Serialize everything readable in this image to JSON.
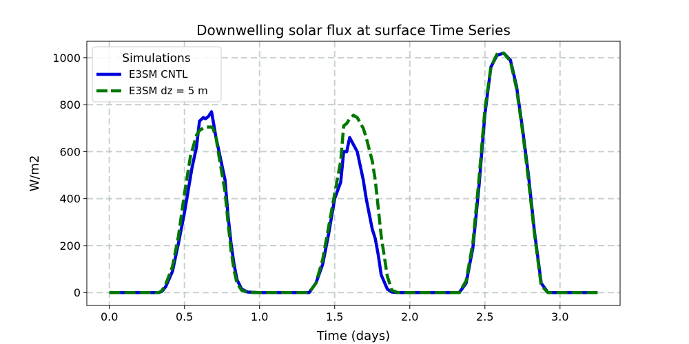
{
  "chart_data": {
    "type": "line",
    "title": "Downwelling solar flux at surface Time Series",
    "xlabel": "Time (days)",
    "ylabel": "W/m2",
    "xlim": [
      -0.15,
      3.4
    ],
    "ylim": [
      -55,
      1070
    ],
    "xticks": [
      0.0,
      0.5,
      1.0,
      1.5,
      2.0,
      2.5,
      3.0
    ],
    "xtick_labels": [
      "0.0",
      "0.5",
      "1.0",
      "1.5",
      "2.0",
      "2.5",
      "3.0"
    ],
    "yticks": [
      0,
      200,
      400,
      600,
      800,
      1000
    ],
    "ytick_labels": [
      "0",
      "200",
      "400",
      "600",
      "800",
      "1000"
    ],
    "grid": true,
    "legend": {
      "title": "Simulations",
      "location": "top-left"
    },
    "series": [
      {
        "name": "E3SM CNTL",
        "color": "#0000dd",
        "style": "solid",
        "x": [
          0.0,
          0.33,
          0.35,
          0.375,
          0.42,
          0.46,
          0.5,
          0.55,
          0.58,
          0.6,
          0.625,
          0.64,
          0.66,
          0.68,
          0.69,
          0.71,
          0.73,
          0.77,
          0.79,
          0.81,
          0.83,
          0.85,
          0.88,
          0.92,
          1.0,
          1.33,
          1.375,
          1.42,
          1.46,
          1.5,
          1.54,
          1.56,
          1.58,
          1.6,
          1.625,
          1.65,
          1.69,
          1.71,
          1.75,
          1.77,
          1.79,
          1.81,
          1.85,
          1.88,
          1.92,
          2.0,
          2.33,
          2.375,
          2.42,
          2.46,
          2.5,
          2.54,
          2.58,
          2.625,
          2.67,
          2.71,
          2.75,
          2.79,
          2.83,
          2.875,
          2.92,
          3.0,
          3.25
        ],
        "y": [
          0,
          0,
          5,
          25,
          90,
          210,
          340,
          530,
          620,
          730,
          745,
          740,
          750,
          770,
          735,
          660,
          600,
          480,
          330,
          210,
          120,
          55,
          15,
          2,
          0,
          0,
          40,
          120,
          250,
          400,
          470,
          600,
          600,
          660,
          630,
          600,
          480,
          400,
          270,
          230,
          160,
          75,
          15,
          2,
          0,
          0,
          0,
          40,
          190,
          450,
          760,
          960,
          1010,
          1020,
          990,
          880,
          700,
          500,
          260,
          40,
          0,
          0,
          0
        ]
      },
      {
        "name": "E3SM dz = 5 m",
        "color": "#007700",
        "style": "dashed",
        "x": [
          0.0,
          0.33,
          0.35,
          0.375,
          0.42,
          0.46,
          0.5,
          0.54,
          0.58,
          0.6,
          0.625,
          0.64,
          0.66,
          0.68,
          0.69,
          0.71,
          0.73,
          0.77,
          0.79,
          0.81,
          0.83,
          0.85,
          0.88,
          0.92,
          1.0,
          1.33,
          1.375,
          1.42,
          1.46,
          1.5,
          1.54,
          1.56,
          1.58,
          1.6,
          1.625,
          1.65,
          1.69,
          1.71,
          1.75,
          1.77,
          1.79,
          1.81,
          1.85,
          1.88,
          1.92,
          2.0,
          2.33,
          2.375,
          2.42,
          2.46,
          2.5,
          2.54,
          2.58,
          2.625,
          2.67,
          2.71,
          2.75,
          2.79,
          2.83,
          2.875,
          2.92,
          3.0,
          3.25
        ],
        "y": [
          0,
          0,
          8,
          35,
          110,
          240,
          420,
          580,
          670,
          690,
          700,
          705,
          705,
          705,
          700,
          660,
          580,
          430,
          300,
          180,
          95,
          40,
          10,
          1,
          0,
          0,
          40,
          140,
          280,
          420,
          560,
          710,
          720,
          740,
          755,
          745,
          700,
          660,
          560,
          480,
          360,
          240,
          70,
          10,
          0,
          0,
          0,
          50,
          210,
          480,
          780,
          960,
          1015,
          1020,
          985,
          870,
          690,
          480,
          250,
          30,
          0,
          0,
          0
        ]
      }
    ]
  }
}
